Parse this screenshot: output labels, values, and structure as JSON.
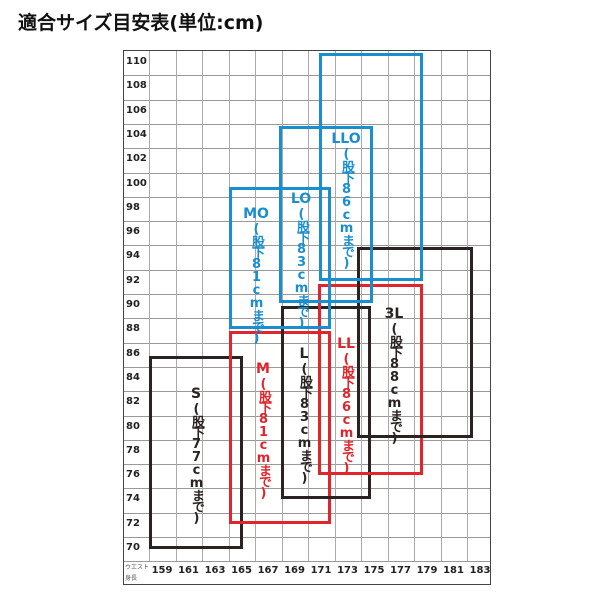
{
  "title": "適合サイズ目安表(単位:cm)",
  "axis": {
    "corner_top": "ウエスト",
    "corner_bottom": "身長",
    "waist_labels": [
      "110",
      "108",
      "106",
      "104",
      "102",
      "100",
      "98",
      "96",
      "94",
      "92",
      "90",
      "88",
      "86",
      "84",
      "82",
      "80",
      "78",
      "76",
      "74",
      "72",
      "70"
    ],
    "height_labels": [
      "159",
      "161",
      "163",
      "165",
      "167",
      "169",
      "171",
      "173",
      "175",
      "177",
      "179",
      "181",
      "183"
    ]
  },
  "colors": {
    "black": "#2a2322",
    "red": "#e0262c",
    "blue": "#1a8fd0"
  },
  "sizes": [
    {
      "id": "s",
      "name": "S",
      "inseam": "(股下77cmまで)",
      "color": "black",
      "waist": [
        70,
        86
      ]
    },
    {
      "id": "m",
      "name": "M",
      "inseam": "(股下81cmまで)",
      "color": "red",
      "waist": [
        72,
        88
      ]
    },
    {
      "id": "l",
      "name": "L",
      "inseam": "(股下83cmまで)",
      "color": "black",
      "waist": [
        74,
        90
      ]
    },
    {
      "id": "ll",
      "name": "LL",
      "inseam": "(股下86cmまで)",
      "color": "red",
      "waist": [
        76,
        92
      ]
    },
    {
      "id": "3l",
      "name": "3L",
      "inseam": "(股下88cmまで)",
      "color": "black",
      "waist": [
        79,
        95
      ]
    },
    {
      "id": "mo",
      "name": "MO",
      "inseam": "(股下81cmまで)",
      "color": "blue",
      "waist": [
        88,
        100
      ]
    },
    {
      "id": "lo",
      "name": "LO",
      "inseam": "(股下83cmまで)",
      "color": "blue",
      "waist": [
        90,
        105
      ]
    },
    {
      "id": "llo",
      "name": "LLO",
      "inseam": "(股下86cmまで)",
      "color": "blue",
      "waist": [
        92,
        110
      ]
    }
  ]
}
